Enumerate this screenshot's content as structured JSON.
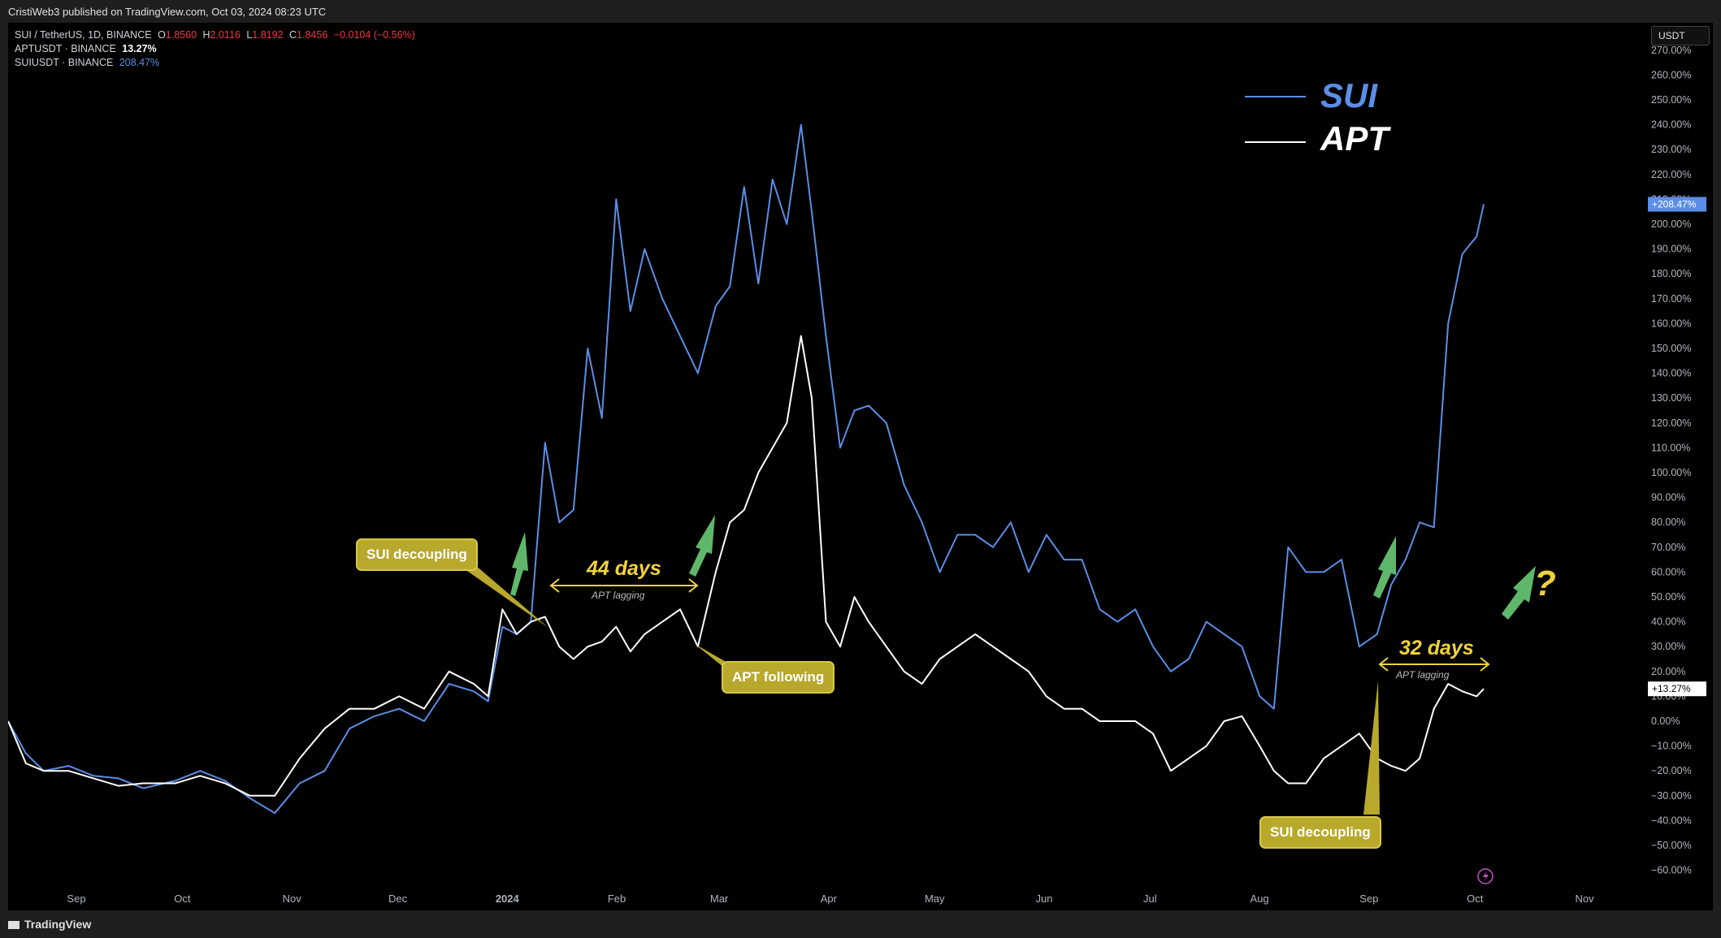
{
  "header": {
    "published": "CristiWeb3 published on TradingView.com, Oct 03, 2024 08:23 UTC"
  },
  "legend": {
    "symbol": "SUI / TetherUS, 1D, BINANCE",
    "ohlc": {
      "o_label": "O",
      "o": "1.8560",
      "h_label": "H",
      "h": "2.0116",
      "l_label": "L",
      "l": "1.8192",
      "c_label": "C",
      "c": "1.8456",
      "change": "−0.0104 (−0.56%)"
    },
    "apt": {
      "name": "APTUSDT · BINANCE",
      "value": "13.27%"
    },
    "sui": {
      "name": "SUIUSDT · BINANCE",
      "value": "208.47%"
    }
  },
  "scale_unit": "USDT",
  "footer": {
    "brand": "TradingView"
  },
  "annotations": {
    "sui_label": "SUI",
    "apt_label": "APT",
    "decouple_1": "SUI decoupling",
    "decouple_2": "SUI decoupling",
    "following": "APT following",
    "days_1": "44 days",
    "days_2": "32 days",
    "lag_1": "APT lagging",
    "lag_2": "APT lagging",
    "question": "?"
  },
  "colors": {
    "sui": "#5b8ee6",
    "apt": "#ffffff",
    "accent": "#f0d33c",
    "arrow": "#5fb86a",
    "callout": "#b8a82c"
  },
  "chart_data": {
    "type": "line",
    "x_ticks": [
      "Sep",
      "Oct",
      "Nov",
      "Dec",
      "2024",
      "Feb",
      "Mar",
      "Apr",
      "May",
      "Jun",
      "Jul",
      "Aug",
      "Sep",
      "Oct",
      "Nov"
    ],
    "y_ticks": [
      "270.00%",
      "260.00%",
      "250.00%",
      "240.00%",
      "230.00%",
      "220.00%",
      "210.00%",
      "200.00%",
      "190.00%",
      "180.00%",
      "170.00%",
      "160.00%",
      "150.00%",
      "140.00%",
      "130.00%",
      "120.00%",
      "110.00%",
      "100.00%",
      "90.00%",
      "80.00%",
      "70.00%",
      "60.00%",
      "50.00%",
      "40.00%",
      "30.00%",
      "20.00%",
      "10.00%",
      "0.00%",
      "−10.00%",
      "−20.00%",
      "−30.00%",
      "−40.00%",
      "−50.00%",
      "−60.00%"
    ],
    "ylim": [
      -60,
      270
    ],
    "last_value_labels": {
      "sui": "+208.47%",
      "apt": "+13.27%"
    },
    "series": [
      {
        "name": "SUI",
        "x": [
          "2023-08-15",
          "2023-08-20",
          "2023-08-25",
          "2023-09-01",
          "2023-09-08",
          "2023-09-15",
          "2023-09-22",
          "2023-10-01",
          "2023-10-08",
          "2023-10-15",
          "2023-10-22",
          "2023-10-29",
          "2023-11-05",
          "2023-11-12",
          "2023-11-19",
          "2023-11-26",
          "2023-12-03",
          "2023-12-10",
          "2023-12-17",
          "2023-12-24",
          "2023-12-28",
          "2024-01-01",
          "2024-01-05",
          "2024-01-09",
          "2024-01-13",
          "2024-01-17",
          "2024-01-21",
          "2024-01-25",
          "2024-01-29",
          "2024-02-02",
          "2024-02-06",
          "2024-02-10",
          "2024-02-15",
          "2024-02-20",
          "2024-02-25",
          "2024-03-01",
          "2024-03-05",
          "2024-03-09",
          "2024-03-13",
          "2024-03-17",
          "2024-03-21",
          "2024-03-25",
          "2024-03-28",
          "2024-04-01",
          "2024-04-05",
          "2024-04-09",
          "2024-04-13",
          "2024-04-18",
          "2024-04-23",
          "2024-04-28",
          "2024-05-03",
          "2024-05-08",
          "2024-05-13",
          "2024-05-18",
          "2024-05-23",
          "2024-05-28",
          "2024-06-02",
          "2024-06-07",
          "2024-06-12",
          "2024-06-17",
          "2024-06-22",
          "2024-06-27",
          "2024-07-02",
          "2024-07-07",
          "2024-07-12",
          "2024-07-17",
          "2024-07-22",
          "2024-07-27",
          "2024-08-01",
          "2024-08-05",
          "2024-08-09",
          "2024-08-14",
          "2024-08-19",
          "2024-08-24",
          "2024-08-29",
          "2024-09-03",
          "2024-09-07",
          "2024-09-11",
          "2024-09-15",
          "2024-09-19",
          "2024-09-23",
          "2024-09-27",
          "2024-10-01",
          "2024-10-03"
        ],
        "values": [
          0,
          -13,
          -20,
          -18,
          -22,
          -23,
          -27,
          -24,
          -20,
          -24,
          -31,
          -37,
          -25,
          -20,
          -3,
          2,
          5,
          0,
          15,
          12,
          8,
          38,
          35,
          40,
          112,
          80,
          85,
          150,
          122,
          210,
          165,
          190,
          170,
          155,
          140,
          167,
          175,
          215,
          176,
          218,
          200,
          240,
          205,
          155,
          110,
          125,
          127,
          120,
          95,
          80,
          60,
          75,
          75,
          70,
          80,
          60,
          75,
          65,
          65,
          45,
          40,
          45,
          30,
          20,
          25,
          40,
          35,
          30,
          10,
          5,
          70,
          60,
          60,
          65,
          30,
          35,
          55,
          65,
          80,
          78,
          160,
          188,
          195,
          208
        ]
      },
      {
        "name": "APT",
        "x": [
          "2023-08-15",
          "2023-08-20",
          "2023-08-25",
          "2023-09-01",
          "2023-09-08",
          "2023-09-15",
          "2023-09-22",
          "2023-10-01",
          "2023-10-08",
          "2023-10-15",
          "2023-10-22",
          "2023-10-29",
          "2023-11-05",
          "2023-11-12",
          "2023-11-19",
          "2023-11-26",
          "2023-12-03",
          "2023-12-10",
          "2023-12-17",
          "2023-12-24",
          "2023-12-28",
          "2024-01-01",
          "2024-01-05",
          "2024-01-09",
          "2024-01-13",
          "2024-01-17",
          "2024-01-21",
          "2024-01-25",
          "2024-01-29",
          "2024-02-02",
          "2024-02-06",
          "2024-02-10",
          "2024-02-15",
          "2024-02-20",
          "2024-02-25",
          "2024-03-01",
          "2024-03-05",
          "2024-03-09",
          "2024-03-13",
          "2024-03-17",
          "2024-03-21",
          "2024-03-25",
          "2024-03-28",
          "2024-04-01",
          "2024-04-05",
          "2024-04-09",
          "2024-04-13",
          "2024-04-18",
          "2024-04-23",
          "2024-04-28",
          "2024-05-03",
          "2024-05-08",
          "2024-05-13",
          "2024-05-18",
          "2024-05-23",
          "2024-05-28",
          "2024-06-02",
          "2024-06-07",
          "2024-06-12",
          "2024-06-17",
          "2024-06-22",
          "2024-06-27",
          "2024-07-02",
          "2024-07-07",
          "2024-07-12",
          "2024-07-17",
          "2024-07-22",
          "2024-07-27",
          "2024-08-01",
          "2024-08-05",
          "2024-08-09",
          "2024-08-14",
          "2024-08-19",
          "2024-08-24",
          "2024-08-29",
          "2024-09-03",
          "2024-09-07",
          "2024-09-11",
          "2024-09-15",
          "2024-09-19",
          "2024-09-23",
          "2024-09-27",
          "2024-10-01",
          "2024-10-03"
        ],
        "values": [
          0,
          -17,
          -20,
          -20,
          -23,
          -26,
          -25,
          -25,
          -22,
          -25,
          -30,
          -30,
          -15,
          -3,
          5,
          5,
          10,
          5,
          20,
          15,
          10,
          45,
          35,
          40,
          42,
          30,
          25,
          30,
          32,
          38,
          28,
          35,
          40,
          45,
          30,
          60,
          80,
          85,
          100,
          110,
          120,
          155,
          130,
          40,
          30,
          50,
          40,
          30,
          20,
          15,
          25,
          30,
          35,
          30,
          25,
          20,
          10,
          5,
          5,
          0,
          0,
          0,
          -5,
          -20,
          -15,
          -10,
          0,
          2,
          -10,
          -20,
          -25,
          -25,
          -15,
          -10,
          -5,
          -15,
          -18,
          -20,
          -15,
          5,
          15,
          12,
          10,
          13
        ]
      }
    ]
  }
}
